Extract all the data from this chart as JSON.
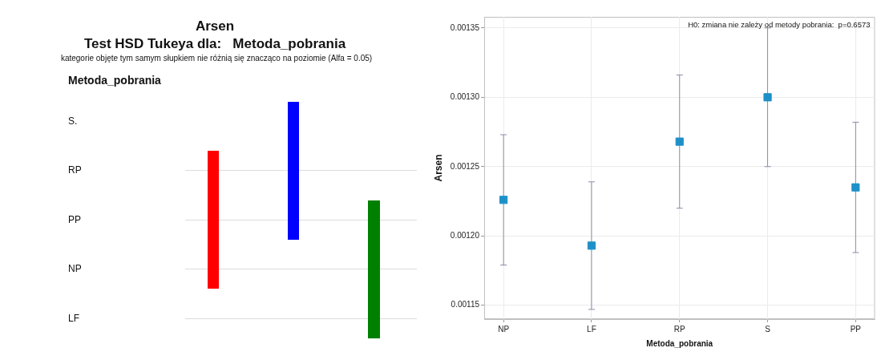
{
  "chart_data": [
    {
      "type": "other",
      "title": "Arsen",
      "subtitle": "Test HSD Tukeya dla:   Metoda_pobrania",
      "annotations": [
        "kategorie objęte tym samym słupkiem nie różnią się znacząco na poziomie (Alfa = 0.05)",
        "Metoda_pobrania",
        "S.",
        "RP",
        "PP",
        "NP",
        "LF"
      ]
    },
    {
      "type": "scatter",
      "xlabel": "Metoda_pobrania",
      "ylabel": "Arsen",
      "annotations": [
        "H0: zmiana nie zależy od metody pobrania:  p=0.6573"
      ],
      "categories": [
        "NP",
        "LF",
        "RP",
        "S",
        "PP"
      ],
      "values": [
        0.001226,
        0.001193,
        0.001268,
        0.0013,
        0.001235
      ],
      "errors": [
        4.7e-05,
        4.6e-05,
        4.8e-05,
        5e-05,
        4.7e-05
      ],
      "color": "#1e90c8",
      "marker": "square",
      "ylim": [
        0.00114,
        0.001358
      ],
      "yticks": [
        0.00115,
        {
          "value": 0.0012,
          "label": "0.00120"
        },
        0.00125,
        {
          "value": 0.0013,
          "label": "0.00130"
        },
        0.00135
      ],
      "grid": true
    }
  ]
}
